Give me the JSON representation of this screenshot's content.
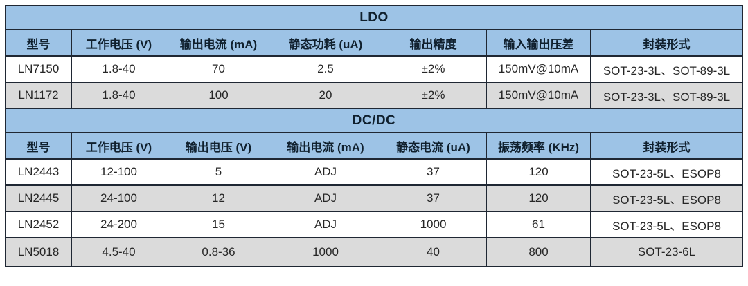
{
  "colors": {
    "section_header_bg": "#9dc3e6",
    "column_header_bg": "#9dc3e6",
    "row_bg": "#ffffff",
    "row_alt_bg": "#dbdbdb",
    "border": "#1f2733",
    "header_text": "#10202e",
    "cell_text": "#262626"
  },
  "tables": [
    {
      "section_title": "LDO",
      "columns": [
        "型号",
        "工作电压 (V)",
        "输出电流 (mA)",
        "静态功耗 (uA)",
        "输出精度",
        "输入输出压差",
        "封装形式"
      ],
      "rows": [
        [
          "LN7150",
          "1.8-40",
          "70",
          "2.5",
          "±2%",
          "150mV@10mA",
          "SOT-23-3L、SOT-89-3L"
        ],
        [
          "LN1172",
          "1.8-40",
          "100",
          "20",
          "±2%",
          "150mV@10mA",
          "SOT-23-3L、SOT-89-3L"
        ]
      ]
    },
    {
      "section_title": "DC/DC",
      "columns": [
        "型号",
        "工作电压 (V)",
        "输出电压 (V)",
        "输出电流 (mA)",
        "静态电流 (uA)",
        "振荡频率 (KHz)",
        "封装形式"
      ],
      "rows": [
        [
          "LN2443",
          "12-100",
          "5",
          "ADJ",
          "37",
          "120",
          "SOT-23-5L、ESOP8"
        ],
        [
          "LN2445",
          "24-100",
          "12",
          "ADJ",
          "37",
          "120",
          "SOT-23-5L、ESOP8"
        ],
        [
          "LN2452",
          "24-200",
          "15",
          "ADJ",
          "1000",
          "61",
          "SOT-23-5L、ESOP8"
        ],
        [
          "LN5018",
          "4.5-40",
          "0.8-36",
          "1000",
          "40",
          "800",
          "SOT-23-6L"
        ]
      ]
    }
  ]
}
